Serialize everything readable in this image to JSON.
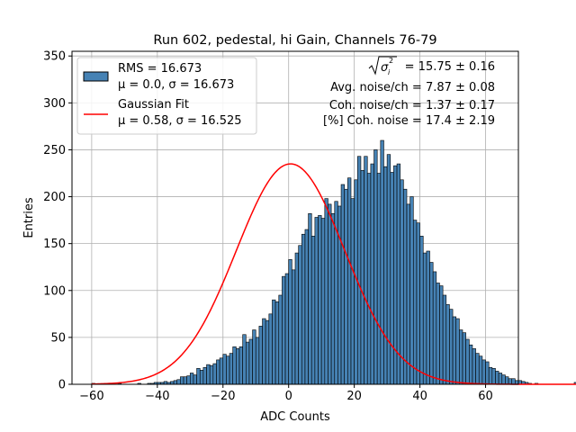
{
  "chart_data": {
    "type": "bar",
    "title": "Run 602, pedestal, hi Gain, Channels 76-79",
    "xlabel": "ADC Counts",
    "ylabel": "Entries",
    "xlim": [
      -66,
      70
    ],
    "ylim": [
      0,
      355
    ],
    "xticks": [
      -60,
      -40,
      -20,
      0,
      20,
      40,
      60
    ],
    "yticks": [
      0,
      50,
      100,
      150,
      200,
      250,
      300,
      350
    ],
    "grid": true,
    "legend_position": "top-left",
    "bin_width": 1,
    "histogram": {
      "name": "RMS = 16.673\nμ = 0.0, σ = 16.673",
      "legend_lines": [
        "RMS = 16.673",
        "μ = 0.0, σ = 16.673"
      ],
      "color": "#4682b4",
      "edge_color": "#000000",
      "bin_start": -60,
      "counts": [
        1,
        0,
        0,
        0,
        0,
        0,
        0,
        0,
        1,
        0,
        0,
        0,
        0,
        0,
        1,
        0,
        0,
        1,
        1,
        2,
        2,
        2,
        3,
        2,
        3,
        4,
        5,
        8,
        8,
        9,
        12,
        10,
        17,
        15,
        18,
        21,
        20,
        22,
        26,
        28,
        32,
        30,
        33,
        40,
        38,
        40,
        53,
        45,
        48,
        58,
        50,
        62,
        70,
        68,
        75,
        90,
        88,
        95,
        115,
        118,
        133,
        122,
        140,
        148,
        160,
        165,
        182,
        158,
        178,
        180,
        177,
        198,
        192,
        182,
        195,
        190,
        213,
        208,
        220,
        198,
        218,
        243,
        228,
        243,
        225,
        235,
        250,
        225,
        260,
        232,
        245,
        226,
        233,
        235,
        218,
        208,
        192,
        200,
        175,
        172,
        158,
        140,
        142,
        130,
        120,
        108,
        105,
        95,
        85,
        80,
        72,
        70,
        58,
        55,
        48,
        42,
        38,
        33,
        30,
        26,
        24,
        18,
        17,
        14,
        12,
        10,
        8,
        6,
        6,
        4,
        4,
        3,
        2,
        1,
        0,
        1,
        0,
        0,
        0,
        0,
        0,
        0,
        0,
        0,
        0,
        0,
        0,
        2,
        0,
        0
      ]
    },
    "gaussian_fit": {
      "name": "Gaussian Fit\nμ = 0.58, σ = 16.525",
      "legend_lines": [
        "Gaussian Fit",
        "μ = 0.58, σ = 16.525"
      ],
      "color": "#ff0000",
      "mu": 0.58,
      "sigma": 16.525,
      "amplitude": 235
    },
    "annotations": {
      "sqrt_value": "= 15.75 ± 0.16",
      "avg_noise": "Avg. noise/ch = 7.87 ± 0.08",
      "coh_noise": "Coh. noise/ch = 1.37 ± 0.17",
      "coh_percent": "[%] Coh. noise = 17.4 ± 2.19"
    }
  }
}
